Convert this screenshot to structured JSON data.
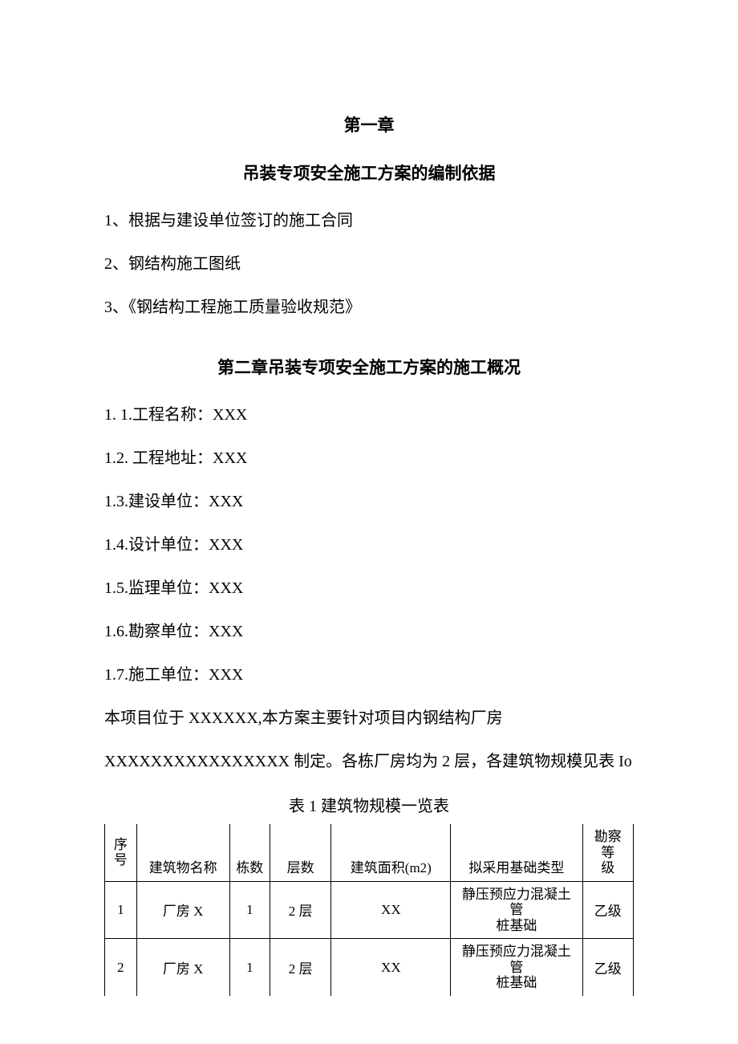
{
  "chapter1": {
    "title": "第一章",
    "subtitle": "吊装专项安全施工方案的编制依据",
    "items": [
      "1、根据与建设单位签订的施工合同",
      "2、钢结构施工图纸",
      "3、《钢结构工程施工质量验收规范》"
    ]
  },
  "chapter2": {
    "title": "第二章吊装专项安全施工方案的施工概况",
    "lines": [
      "1.  1.工程名称：XXX",
      "1.2.   工程地址：XXX",
      "1.3.建设单位：XXX",
      "1.4.设计单位：XXX",
      "1.5.监理单位：XXX",
      "1.6.勘察单位：XXX",
      "1.7.施工单位：XXX",
      "本项目位于 XXXXXX,本方案主要针对项目内钢结构厂房",
      "XXXXXXXXXXXXXXXX 制定。各栋厂房均为 2 层，各建筑物规模见表 Io"
    ]
  },
  "table1": {
    "caption": "表 1 建筑物规模一览表",
    "headers": {
      "seq1": "序",
      "seq2": "号",
      "name": "建筑物名称",
      "count": "栋数",
      "floors": "层数",
      "area": "建筑面积(m2)",
      "foundation": "拟采用基础类型",
      "grade1": "勘察等",
      "grade2": "级"
    },
    "rows": [
      {
        "seq": "1",
        "name": "厂房 X",
        "count": "1",
        "floors": "2 层",
        "area": "XX",
        "foundation1": "静压预应力混凝土管",
        "foundation2": "桩基础",
        "grade": "乙级"
      },
      {
        "seq": "2",
        "name": "厂房 X",
        "count": "1",
        "floors": "2 层",
        "area": "XX",
        "foundation1": "静压预应力混凝土管",
        "foundation2": "桩基础",
        "grade": "乙级"
      }
    ]
  }
}
